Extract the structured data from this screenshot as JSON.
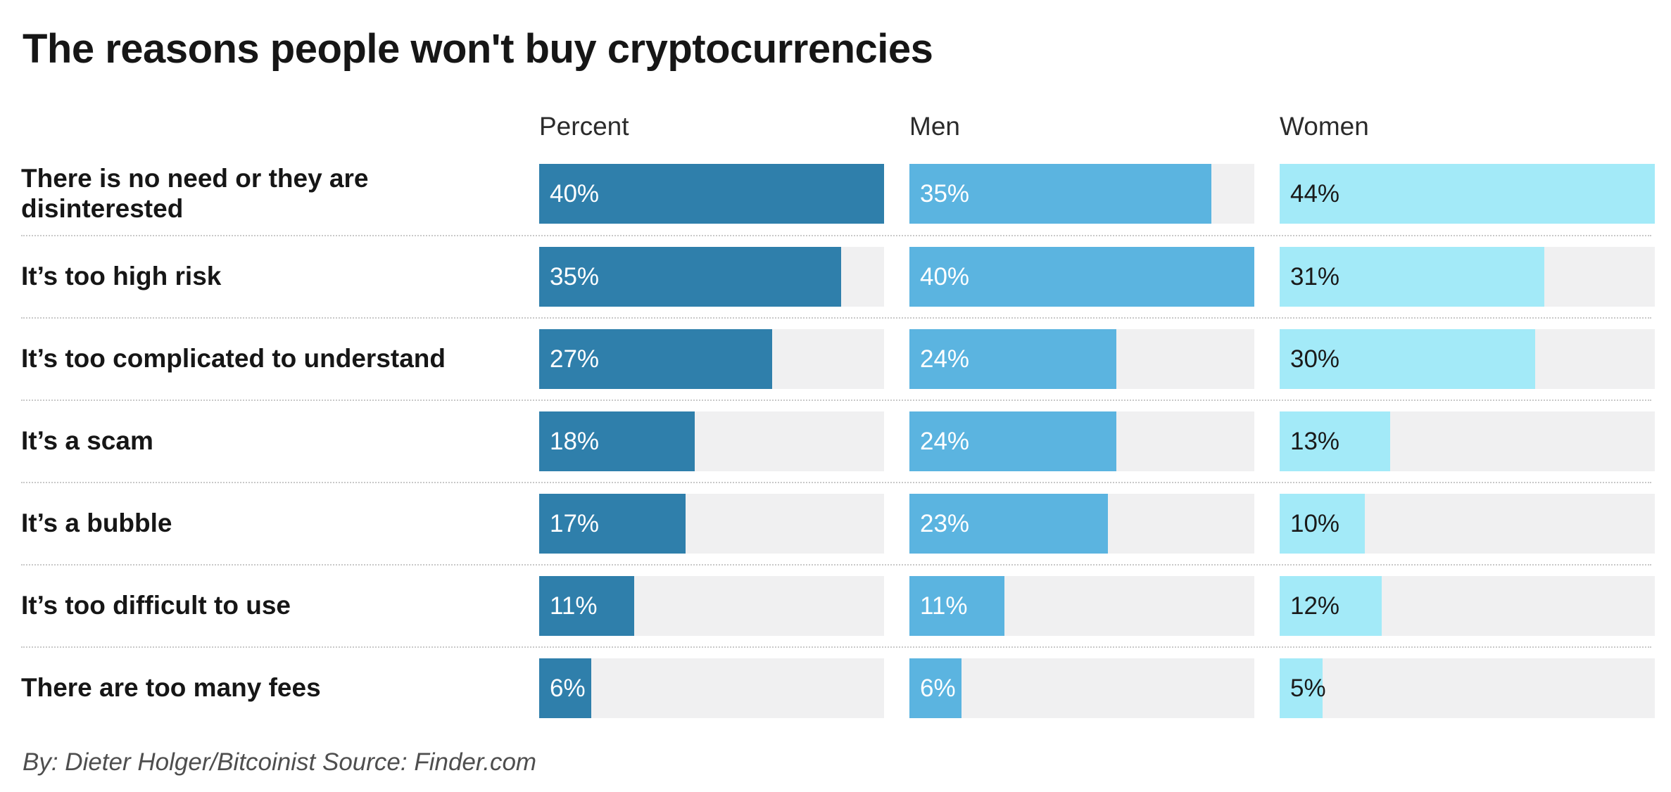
{
  "title": "The reasons people won't buy cryptocurrencies",
  "footer": {
    "byline": "By: Dieter Holger/Bitcoinist Source: Finder.com"
  },
  "track_color": "#f0f0f1",
  "columns": [
    {
      "key": "percent",
      "label": "Percent",
      "max": 40,
      "bar_color": "#2f7fab",
      "value_text_color": "#ffffff"
    },
    {
      "key": "men",
      "label": "Men",
      "max": 40,
      "bar_color": "#5bb4e0",
      "value_text_color": "#ffffff"
    },
    {
      "key": "women",
      "label": "Women",
      "max": 44,
      "bar_color": "#a3eaf8",
      "value_text_color": "#1a1a1a"
    }
  ],
  "rows": [
    {
      "category": "There is no need or they are disinterested",
      "percent": {
        "value": 40,
        "label": "40%"
      },
      "men": {
        "value": 35,
        "label": "35%"
      },
      "women": {
        "value": 44,
        "label": "44%"
      }
    },
    {
      "category": "It’s too high risk",
      "percent": {
        "value": 35,
        "label": "35%"
      },
      "men": {
        "value": 40,
        "label": "40%"
      },
      "women": {
        "value": 31,
        "label": "31%"
      }
    },
    {
      "category": "It’s too complicated to understand",
      "percent": {
        "value": 27,
        "label": "27%"
      },
      "men": {
        "value": 24,
        "label": "24%"
      },
      "women": {
        "value": 30,
        "label": "30%"
      }
    },
    {
      "category": "It’s a scam",
      "percent": {
        "value": 18,
        "label": "18%"
      },
      "men": {
        "value": 24,
        "label": "24%"
      },
      "women": {
        "value": 13,
        "label": "13%"
      }
    },
    {
      "category": "It’s a bubble",
      "percent": {
        "value": 17,
        "label": "17%"
      },
      "men": {
        "value": 23,
        "label": "23%"
      },
      "women": {
        "value": 10,
        "label": "10%"
      }
    },
    {
      "category": "It’s too difficult to use",
      "percent": {
        "value": 11,
        "label": "11%"
      },
      "men": {
        "value": 11,
        "label": "11%"
      },
      "women": {
        "value": 12,
        "label": "12%"
      }
    },
    {
      "category": "There are too many fees",
      "percent": {
        "value": 6,
        "label": "6%"
      },
      "men": {
        "value": 6,
        "label": "6%"
      },
      "women": {
        "value": 5,
        "label": "5%"
      }
    }
  ],
  "chart_data": {
    "type": "bar",
    "orientation": "horizontal",
    "title": "The reasons people won't buy cryptocurrencies",
    "categories": [
      "There is no need or they are disinterested",
      "It’s too high risk",
      "It’s too complicated to understand",
      "It’s a scam",
      "It’s a bubble",
      "It’s too difficult to use",
      "There are too many fees"
    ],
    "series": [
      {
        "name": "Percent",
        "values": [
          40,
          35,
          27,
          18,
          17,
          11,
          6
        ],
        "color": "#2f7fab"
      },
      {
        "name": "Men",
        "values": [
          35,
          40,
          24,
          24,
          23,
          11,
          6
        ],
        "color": "#5bb4e0"
      },
      {
        "name": "Women",
        "values": [
          44,
          31,
          30,
          13,
          10,
          12,
          5
        ],
        "color": "#a3eaf8"
      }
    ],
    "value_suffix": "%",
    "data_labels": "inside-left",
    "axis_range_per_series": {
      "Percent": [
        0,
        40
      ],
      "Men": [
        0,
        40
      ],
      "Women": [
        0,
        44
      ]
    },
    "grid": false,
    "legend_position": "column-headers-top",
    "byline": "By: Dieter Holger/Bitcoinist Source: Finder.com"
  }
}
